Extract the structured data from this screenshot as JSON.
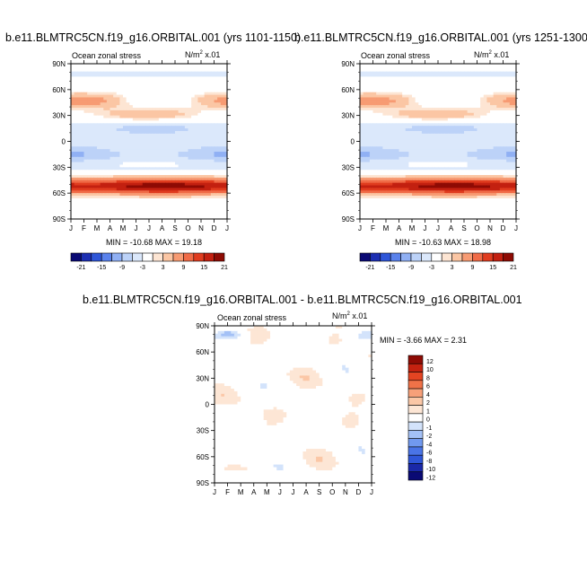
{
  "colors": {
    "scale_21": [
      "#0a0a74",
      "#1d2fb2",
      "#2f56d8",
      "#5a82ec",
      "#90b0f4",
      "#bcd2f8",
      "#dbe8fb",
      "#ffffff",
      "#fde5d3",
      "#fbc6a4",
      "#f79b73",
      "#f06b47",
      "#e03c1f",
      "#c32010",
      "#8e0b04"
    ],
    "scale_12": [
      "#0a0a74",
      "#1a28a8",
      "#2f56d8",
      "#4a74e6",
      "#7199ef",
      "#a4c1f6",
      "#d3e3fb",
      "#ffffff",
      "#fde6d5",
      "#fbc7a6",
      "#f7a079",
      "#f07248",
      "#e44422",
      "#c42210",
      "#8e0b04"
    ]
  },
  "chart_data": [
    {
      "type": "heatmap",
      "title": "b.e11.BLMTRC5CN.f19_g16.ORBITAL.001 (yrs 1101-1150)",
      "left_label": "Ocean zonal stress",
      "units_base": "N/m",
      "units_sup": "2",
      "units_tail": " x.01",
      "xticklabels": [
        "J",
        "F",
        "M",
        "A",
        "M",
        "J",
        "J",
        "A",
        "S",
        "O",
        "N",
        "D",
        "J"
      ],
      "yticklabels": [
        "90N",
        "60N",
        "30N",
        "0",
        "30S",
        "60S",
        "90S"
      ],
      "ylim": [
        -90,
        90
      ],
      "stats": "MIN = -10.68 MAX =  19.18",
      "colorbar_labels": [
        "-21",
        "-15",
        "-9",
        "-3",
        "3",
        "9",
        "15",
        "21"
      ],
      "levels": [
        -21,
        -18,
        -15,
        -12,
        -9,
        -6,
        -3,
        0,
        3,
        6,
        9,
        12,
        15,
        18,
        21
      ]
    },
    {
      "type": "heatmap",
      "title": "b.e11.BLMTRC5CN.f19_g16.ORBITAL.001 (yrs 1251-1300)",
      "left_label": "Ocean zonal stress",
      "units_base": "N/m",
      "units_sup": "2",
      "units_tail": " x.01",
      "xticklabels": [
        "J",
        "F",
        "M",
        "A",
        "M",
        "J",
        "J",
        "A",
        "S",
        "O",
        "N",
        "D",
        "J"
      ],
      "yticklabels": [
        "90N",
        "60N",
        "30N",
        "0",
        "30S",
        "60S",
        "90S"
      ],
      "ylim": [
        -90,
        90
      ],
      "stats": "MIN = -10.63 MAX =  18.98",
      "colorbar_labels": [
        "-21",
        "-15",
        "-9",
        "-3",
        "3",
        "9",
        "15",
        "21"
      ],
      "levels": [
        -21,
        -18,
        -15,
        -12,
        -9,
        -6,
        -3,
        0,
        3,
        6,
        9,
        12,
        15,
        18,
        21
      ]
    },
    {
      "type": "heatmap",
      "title": "b.e11.BLMTRC5CN.f19_g16.ORBITAL.001 - b.e11.BLMTRC5CN.f19_g16.ORBITAL.001",
      "left_label": "Ocean zonal stress",
      "units_base": "N/m",
      "units_sup": "2",
      "units_tail": " x.01",
      "xticklabels": [
        "J",
        "F",
        "M",
        "A",
        "M",
        "J",
        "J",
        "A",
        "S",
        "O",
        "N",
        "D",
        "J"
      ],
      "yticklabels": [
        "90N",
        "60N",
        "30N",
        "0",
        "30S",
        "60S",
        "90S"
      ],
      "ylim": [
        -90,
        90
      ],
      "stats": "MIN =  -3.66 MAX =   2.31",
      "colorbar_labels": [
        "12",
        "10",
        "8",
        "6",
        "4",
        "2",
        "1",
        "0",
        "-1",
        "-2",
        "-4",
        "-6",
        "-8",
        "-10",
        "-12"
      ],
      "levels": [
        -12,
        -10,
        -8,
        -6,
        -4,
        -2,
        -1,
        0,
        1,
        2,
        4,
        6,
        8,
        10,
        12
      ]
    }
  ]
}
